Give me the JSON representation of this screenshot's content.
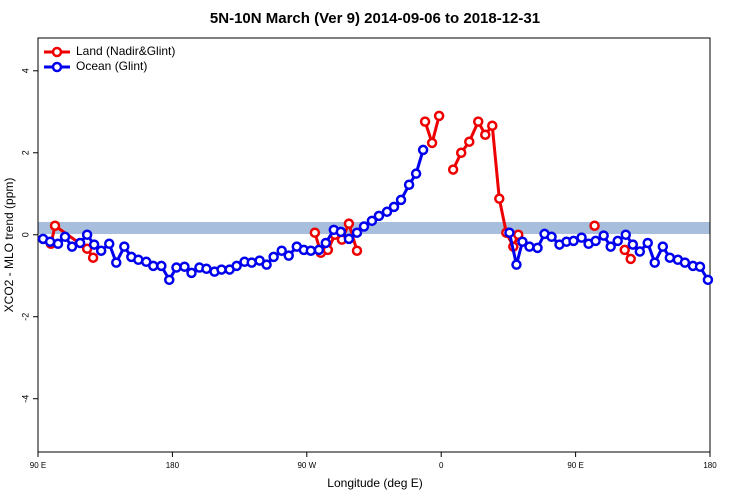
{
  "chart_data": {
    "type": "line",
    "title": "5N-10N March (Ver 9)   2014-09-06 to 2018-12-31",
    "x_label": "Longitude (deg E)",
    "y_label": "XCO2 - MLO trend (ppm)",
    "xlim": [
      90,
      540
    ],
    "ylim": [
      -5.3,
      4.8
    ],
    "xticks": [
      {
        "value": 90,
        "label": "90 E"
      },
      {
        "value": 180,
        "label": "180"
      },
      {
        "value": 270,
        "label": "90 W"
      },
      {
        "value": 360,
        "label": "0"
      },
      {
        "value": 450,
        "label": "90 E"
      },
      {
        "value": 540,
        "label": "180"
      }
    ],
    "yticks": [
      -4,
      -2,
      0,
      2,
      4
    ],
    "legend": "top-left",
    "series": [
      {
        "name": "Land (Nadir&Glint)",
        "color": "#ee0000",
        "x": [
          98.7,
          101.4,
          122.9,
          126.9,
          null,
          275.4,
          279.4,
          284.1,
          288.8,
          293.5,
          298.2,
          303.6,
          null,
          349.2,
          353.9,
          358.6,
          null,
          368.0,
          373.4,
          378.8,
          384.8,
          389.5,
          394.2,
          398.9,
          403.6,
          408.3,
          411.6,
          null,
          462.7,
          null,
          482.9,
          486.9
        ],
        "values": [
          -0.22,
          0.22,
          -0.34,
          -0.56,
          null,
          0.05,
          -0.44,
          -0.37,
          0.0,
          -0.12,
          0.27,
          -0.39,
          null,
          2.76,
          2.24,
          2.9,
          null,
          1.59,
          2.0,
          2.27,
          2.76,
          2.44,
          2.66,
          0.88,
          0.05,
          -0.29,
          0.0,
          null,
          0.22,
          null,
          -0.37,
          -0.59
        ]
      },
      {
        "name": "Ocean (Glint)",
        "color": "#0000ee",
        "x": [
          93.4,
          98.1,
          103.4,
          108.1,
          112.8,
          118.2,
          122.9,
          127.6,
          132.3,
          137.7,
          142.4,
          147.8,
          152.5,
          157.2,
          162.5,
          167.2,
          172.6,
          177.9,
          182.7,
          188.1,
          192.8,
          198.1,
          202.8,
          208.2,
          212.9,
          218.3,
          223.0,
          228.3,
          233.1,
          238.4,
          243.1,
          247.8,
          253.2,
          257.9,
          263.3,
          268.0,
          272.7,
          278.1,
          282.7,
          288.1,
          292.8,
          298.2,
          303.6,
          308.3,
          313.6,
          318.3,
          323.7,
          328.4,
          333.1,
          338.5,
          343.2,
          347.9,
          null,
          405.7,
          410.4,
          414.4,
          419.1,
          424.5,
          429.2,
          433.9,
          439.2,
          443.9,
          448.6,
          454.0,
          458.7,
          463.4,
          468.8,
          473.5,
          478.2,
          483.6,
          488.3,
          493.0,
          498.3,
          503.0,
          508.4,
          513.1,
          518.5,
          523.2,
          528.6,
          533.3,
          538.6
        ],
        "values": [
          -0.1,
          -0.17,
          -0.22,
          -0.05,
          -0.29,
          -0.2,
          0.0,
          -0.24,
          -0.39,
          -0.22,
          -0.68,
          -0.29,
          -0.54,
          -0.61,
          -0.66,
          -0.76,
          -0.76,
          -1.1,
          -0.8,
          -0.78,
          -0.93,
          -0.8,
          -0.83,
          -0.9,
          -0.85,
          -0.85,
          -0.76,
          -0.66,
          -0.68,
          -0.63,
          -0.73,
          -0.54,
          -0.39,
          -0.51,
          -0.29,
          -0.37,
          -0.39,
          -0.37,
          -0.2,
          0.12,
          0.07,
          -0.1,
          0.05,
          0.2,
          0.34,
          0.46,
          0.56,
          0.68,
          0.85,
          1.22,
          1.49,
          2.07,
          null,
          0.05,
          -0.73,
          -0.17,
          -0.29,
          -0.32,
          0.02,
          -0.05,
          -0.24,
          -0.17,
          -0.15,
          -0.07,
          -0.22,
          -0.15,
          -0.02,
          -0.29,
          -0.15,
          0.0,
          -0.24,
          -0.41,
          -0.2,
          -0.68,
          -0.29,
          -0.56,
          -0.61,
          -0.68,
          -0.76,
          -0.78,
          -1.1
        ]
      }
    ]
  }
}
